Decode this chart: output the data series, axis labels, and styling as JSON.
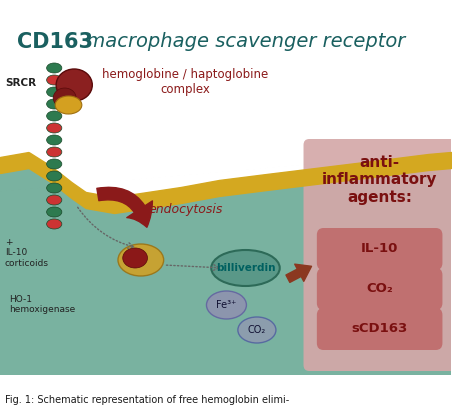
{
  "title_bold": "CD163",
  "title_italic": " macrophage scavenger receptor",
  "bg_color": "#ffffff",
  "cell_color": "#6aaa96",
  "gold": "#d4a820",
  "srcr_label": "SRCR",
  "hb_label": "hemoglobine / haptoglobine\ncomplex",
  "endocytosis_label": "endocytosis",
  "ho1_label": "HO-1\nhemoxigenase",
  "billiverdin_label": "billiverdin",
  "fe_label": "Fe³⁺",
  "co2_label_bottom": "CO₂",
  "il10_left_label": "+\nIL-10\ncorticoids",
  "anti_title": "anti-\ninflammatory\nagents:",
  "anti_items": [
    "IL-10",
    "CO₂",
    "sCD163"
  ],
  "anti_bg": "#d4a8a8",
  "anti_pill_color": "#c07070",
  "anti_text_color": "#7a1010",
  "fig_caption": "Fig. 1: Schematic representation of free hemoglobin elimi-",
  "title_color": "#1a6060",
  "dark_red": "#8b1a1a",
  "teal": "#006060",
  "bead_colors": [
    "#2d7a4f",
    "#cc3333",
    "#2d7a4f",
    "#2d7a4f",
    "#2d7a4f",
    "#cc3333"
  ]
}
